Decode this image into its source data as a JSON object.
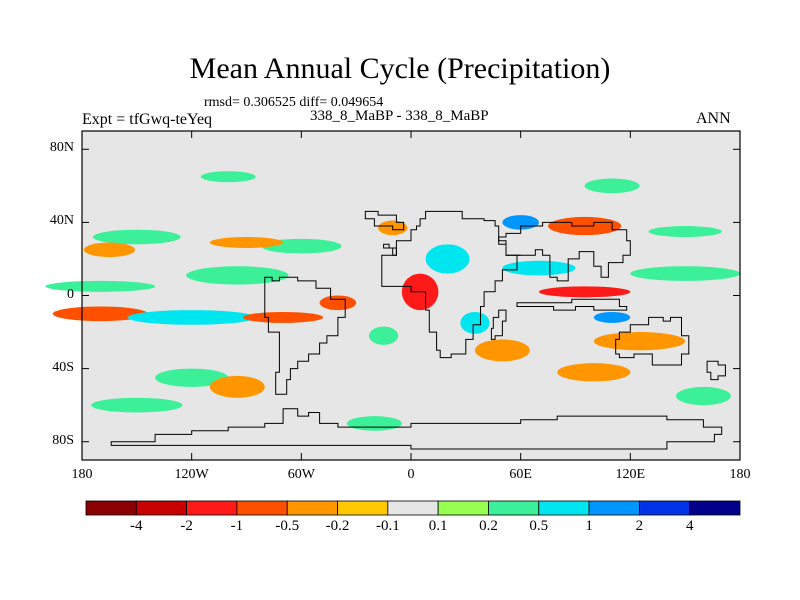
{
  "title": "Mean Annual Cycle (Precipitation)",
  "stats": "rmsd= 0.306525 diff= 0.049654",
  "left_string": "Expt = tfGwq-teYeq",
  "center_string": "338_8_MaBP - 338_8_MaBP",
  "right_string": "ANN",
  "chart_data": {
    "type": "heatmap",
    "projection": "cylindrical-equidistant",
    "lon_range": [
      -180,
      180
    ],
    "lat_range": [
      -90,
      90
    ],
    "x_ticks": [
      "180",
      "120W",
      "60W",
      "0",
      "60E",
      "120E",
      "180"
    ],
    "y_ticks": [
      "80N",
      "40N",
      "0",
      "40S",
      "80S"
    ],
    "colorbar": {
      "labels": [
        "-4",
        "-2",
        "-1",
        "-0.5",
        "-0.2",
        "-0.1",
        "0.1",
        "0.2",
        "0.5",
        "1",
        "2",
        "4"
      ],
      "colors": [
        "#8b0000",
        "#c80000",
        "#ff1a1a",
        "#ff5000",
        "#ff9600",
        "#ffc800",
        "#e6e6e6",
        "#96ff50",
        "#3cf09a",
        "#00e6f0",
        "#0096ff",
        "#0032e6",
        "#00008b"
      ]
    },
    "anomaly_regions": [
      {
        "lon": -150,
        "lat": 32,
        "rlon": 24,
        "rlat": 4,
        "v": 0.3
      },
      {
        "lon": -60,
        "lat": 27,
        "rlon": 22,
        "rlat": 4,
        "v": 0.3
      },
      {
        "lon": -165,
        "lat": 25,
        "rlon": 14,
        "rlat": 4,
        "v": -0.3
      },
      {
        "lon": -90,
        "lat": 29,
        "rlon": 20,
        "rlat": 3,
        "v": -0.35
      },
      {
        "lon": -10,
        "lat": 37,
        "rlon": 8,
        "rlat": 4,
        "v": -0.5
      },
      {
        "lon": -170,
        "lat": 5,
        "rlon": 30,
        "rlat": 3,
        "v": 0.3
      },
      {
        "lon": -95,
        "lat": 11,
        "rlon": 28,
        "rlat": 5,
        "v": 0.4
      },
      {
        "lon": -170,
        "lat": -10,
        "rlon": 26,
        "rlat": 4,
        "v": -0.6
      },
      {
        "lon": -120,
        "lat": -12,
        "rlon": 35,
        "rlat": 4,
        "v": 0.6
      },
      {
        "lon": -70,
        "lat": -12,
        "rlon": 22,
        "rlat": 3,
        "v": -0.7
      },
      {
        "lon": -40,
        "lat": -4,
        "rlon": 10,
        "rlat": 4,
        "v": -0.6
      },
      {
        "lon": 5,
        "lat": 2,
        "rlon": 10,
        "rlat": 10,
        "v": -1.2
      },
      {
        "lon": -15,
        "lat": -22,
        "rlon": 8,
        "rlat": 5,
        "v": 0.4
      },
      {
        "lon": 20,
        "lat": 20,
        "rlon": 12,
        "rlat": 8,
        "v": 0.5
      },
      {
        "lon": 35,
        "lat": -15,
        "rlon": 8,
        "rlat": 6,
        "v": 0.8
      },
      {
        "lon": 60,
        "lat": 40,
        "rlon": 10,
        "rlat": 4,
        "v": 1.0
      },
      {
        "lon": 95,
        "lat": 38,
        "rlon": 20,
        "rlat": 5,
        "v": -0.8
      },
      {
        "lon": 95,
        "lat": 2,
        "rlon": 25,
        "rlat": 3,
        "v": -1.1
      },
      {
        "lon": 110,
        "lat": -12,
        "rlon": 10,
        "rlat": 3,
        "v": 1.3
      },
      {
        "lon": 70,
        "lat": 15,
        "rlon": 20,
        "rlat": 4,
        "v": 0.5
      },
      {
        "lon": 150,
        "lat": 12,
        "rlon": 30,
        "rlat": 4,
        "v": 0.4
      },
      {
        "lon": 125,
        "lat": -25,
        "rlon": 25,
        "rlat": 5,
        "v": -0.5
      },
      {
        "lon": 50,
        "lat": -30,
        "rlon": 15,
        "rlat": 6,
        "v": -0.4
      },
      {
        "lon": -120,
        "lat": -45,
        "rlon": 20,
        "rlat": 5,
        "v": 0.3
      },
      {
        "lon": -95,
        "lat": -50,
        "rlon": 15,
        "rlat": 6,
        "v": -0.5
      },
      {
        "lon": -150,
        "lat": -60,
        "rlon": 25,
        "rlat": 4,
        "v": 0.3
      },
      {
        "lon": 100,
        "lat": -42,
        "rlon": 20,
        "rlat": 5,
        "v": -0.4
      },
      {
        "lon": 160,
        "lat": -55,
        "rlon": 15,
        "rlat": 5,
        "v": 0.2
      },
      {
        "lon": -20,
        "lat": -70,
        "rlon": 15,
        "rlat": 4,
        "v": 0.3
      },
      {
        "lon": 150,
        "lat": 35,
        "rlon": 20,
        "rlat": 3,
        "v": 0.3
      },
      {
        "lon": 110,
        "lat": 60,
        "rlon": 15,
        "rlat": 4,
        "v": 0.2
      },
      {
        "lon": -100,
        "lat": 65,
        "rlon": 15,
        "rlat": 3,
        "v": 0.2
      }
    ]
  }
}
